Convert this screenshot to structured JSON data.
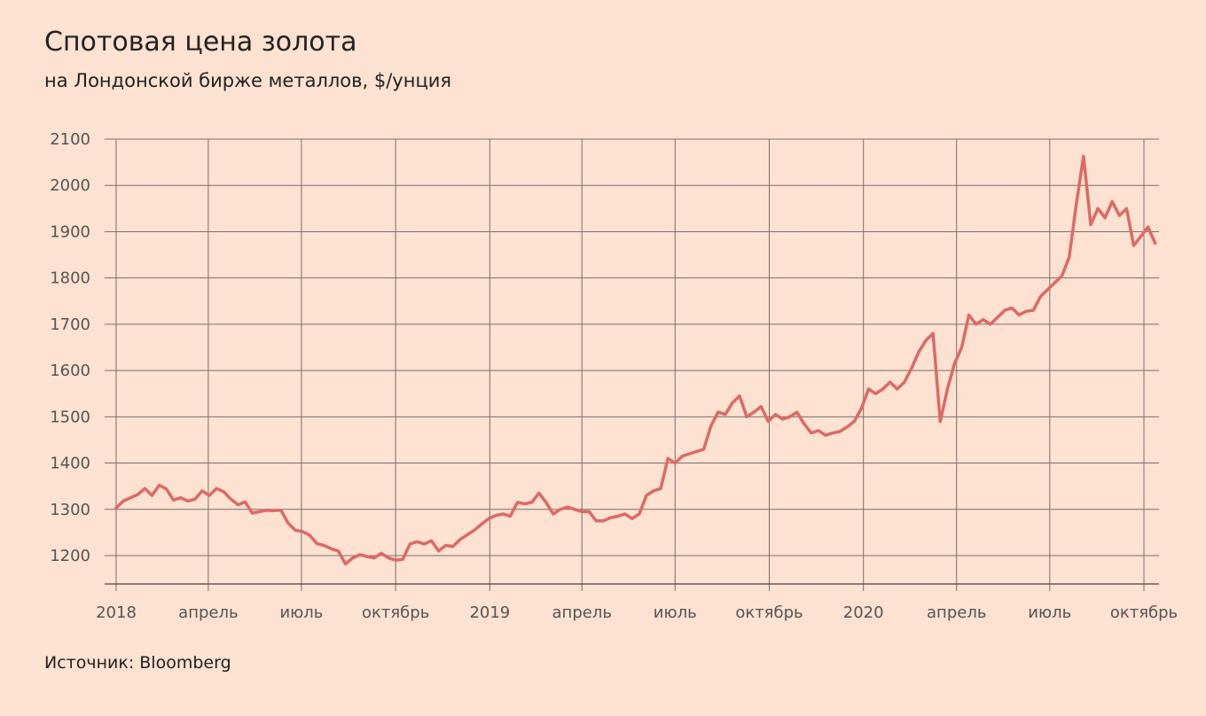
{
  "title": "Спотовая цена золота",
  "subtitle": "на Лондонской бирже металлов, $/унция",
  "source": "Источник: Bloomberg",
  "colors": {
    "background": "#fde1d1",
    "line": "#dc6a66",
    "grid": "#7a6f6c",
    "text": "#222222",
    "tick_text": "#555555"
  },
  "chart_data": {
    "type": "line",
    "title": "Спотовая цена золота",
    "subtitle": "на Лондонской бирже металлов, $/унция",
    "xlabel": "",
    "ylabel": "",
    "ylim": [
      1150,
      2100
    ],
    "xlim": [
      "2018-01-01",
      "2020-10-12"
    ],
    "grid": true,
    "y_ticks": [
      1200,
      1300,
      1400,
      1500,
      1600,
      1700,
      1800,
      1900,
      2000,
      2100
    ],
    "x_ticks": [
      {
        "date": "2018-01-01",
        "label": "2018"
      },
      {
        "date": "2018-04-01",
        "label": "апрель"
      },
      {
        "date": "2018-07-01",
        "label": "июль"
      },
      {
        "date": "2018-10-01",
        "label": "октябрь"
      },
      {
        "date": "2019-01-01",
        "label": "2019"
      },
      {
        "date": "2019-04-01",
        "label": "апрель"
      },
      {
        "date": "2019-07-01",
        "label": "июль"
      },
      {
        "date": "2019-10-01",
        "label": "октябрь"
      },
      {
        "date": "2020-01-01",
        "label": "2020"
      },
      {
        "date": "2020-04-01",
        "label": "апрель"
      },
      {
        "date": "2020-07-01",
        "label": "июль"
      },
      {
        "date": "2020-10-01",
        "label": "октябрь"
      }
    ],
    "series": [
      {
        "points": [
          [
            "2018-01-01",
            1303
          ],
          [
            "2018-01-08",
            1318
          ],
          [
            "2018-01-15",
            1325
          ],
          [
            "2018-01-22",
            1332
          ],
          [
            "2018-01-29",
            1345
          ],
          [
            "2018-02-05",
            1330
          ],
          [
            "2018-02-12",
            1352
          ],
          [
            "2018-02-19",
            1344
          ],
          [
            "2018-02-26",
            1320
          ],
          [
            "2018-03-05",
            1325
          ],
          [
            "2018-03-12",
            1318
          ],
          [
            "2018-03-19",
            1322
          ],
          [
            "2018-03-26",
            1340
          ],
          [
            "2018-04-02",
            1330
          ],
          [
            "2018-04-09",
            1345
          ],
          [
            "2018-04-16",
            1338
          ],
          [
            "2018-04-23",
            1322
          ],
          [
            "2018-04-30",
            1310
          ],
          [
            "2018-05-07",
            1316
          ],
          [
            "2018-05-14",
            1292
          ],
          [
            "2018-05-21",
            1295
          ],
          [
            "2018-05-28",
            1298
          ],
          [
            "2018-06-04",
            1297
          ],
          [
            "2018-06-11",
            1298
          ],
          [
            "2018-06-18",
            1270
          ],
          [
            "2018-06-25",
            1255
          ],
          [
            "2018-07-02",
            1252
          ],
          [
            "2018-07-09",
            1244
          ],
          [
            "2018-07-16",
            1226
          ],
          [
            "2018-07-23",
            1222
          ],
          [
            "2018-07-30",
            1215
          ],
          [
            "2018-08-06",
            1210
          ],
          [
            "2018-08-13",
            1182
          ],
          [
            "2018-08-20",
            1195
          ],
          [
            "2018-08-27",
            1202
          ],
          [
            "2018-09-03",
            1198
          ],
          [
            "2018-09-10",
            1195
          ],
          [
            "2018-09-17",
            1205
          ],
          [
            "2018-09-24",
            1195
          ],
          [
            "2018-10-01",
            1190
          ],
          [
            "2018-10-08",
            1192
          ],
          [
            "2018-10-15",
            1225
          ],
          [
            "2018-10-22",
            1230
          ],
          [
            "2018-10-29",
            1225
          ],
          [
            "2018-11-05",
            1232
          ],
          [
            "2018-11-12",
            1210
          ],
          [
            "2018-11-19",
            1222
          ],
          [
            "2018-11-26",
            1220
          ],
          [
            "2018-12-03",
            1235
          ],
          [
            "2018-12-10",
            1245
          ],
          [
            "2018-12-17",
            1255
          ],
          [
            "2018-12-24",
            1268
          ],
          [
            "2018-12-31",
            1280
          ],
          [
            "2019-01-07",
            1287
          ],
          [
            "2019-01-14",
            1290
          ],
          [
            "2019-01-21",
            1285
          ],
          [
            "2019-01-28",
            1315
          ],
          [
            "2019-02-04",
            1312
          ],
          [
            "2019-02-11",
            1315
          ],
          [
            "2019-02-18",
            1335
          ],
          [
            "2019-02-25",
            1315
          ],
          [
            "2019-03-04",
            1290
          ],
          [
            "2019-03-11",
            1300
          ],
          [
            "2019-03-18",
            1305
          ],
          [
            "2019-03-25",
            1300
          ],
          [
            "2019-04-01",
            1295
          ],
          [
            "2019-04-08",
            1295
          ],
          [
            "2019-04-15",
            1275
          ],
          [
            "2019-04-22",
            1275
          ],
          [
            "2019-04-29",
            1282
          ],
          [
            "2019-05-06",
            1285
          ],
          [
            "2019-05-13",
            1290
          ],
          [
            "2019-05-20",
            1280
          ],
          [
            "2019-05-27",
            1290
          ],
          [
            "2019-06-03",
            1330
          ],
          [
            "2019-06-10",
            1340
          ],
          [
            "2019-06-17",
            1345
          ],
          [
            "2019-06-24",
            1410
          ],
          [
            "2019-07-01",
            1400
          ],
          [
            "2019-07-08",
            1415
          ],
          [
            "2019-07-15",
            1420
          ],
          [
            "2019-07-22",
            1425
          ],
          [
            "2019-07-29",
            1430
          ],
          [
            "2019-08-05",
            1480
          ],
          [
            "2019-08-12",
            1510
          ],
          [
            "2019-08-19",
            1505
          ],
          [
            "2019-08-26",
            1530
          ],
          [
            "2019-09-02",
            1545
          ],
          [
            "2019-09-09",
            1500
          ],
          [
            "2019-09-16",
            1510
          ],
          [
            "2019-09-23",
            1522
          ],
          [
            "2019-09-30",
            1490
          ],
          [
            "2019-10-07",
            1505
          ],
          [
            "2019-10-14",
            1495
          ],
          [
            "2019-10-21",
            1500
          ],
          [
            "2019-10-28",
            1510
          ],
          [
            "2019-11-04",
            1485
          ],
          [
            "2019-11-11",
            1465
          ],
          [
            "2019-11-18",
            1470
          ],
          [
            "2019-11-25",
            1460
          ],
          [
            "2019-12-02",
            1465
          ],
          [
            "2019-12-09",
            1468
          ],
          [
            "2019-12-16",
            1478
          ],
          [
            "2019-12-23",
            1490
          ],
          [
            "2019-12-30",
            1518
          ],
          [
            "2020-01-06",
            1560
          ],
          [
            "2020-01-13",
            1550
          ],
          [
            "2020-01-20",
            1560
          ],
          [
            "2020-01-27",
            1575
          ],
          [
            "2020-02-03",
            1560
          ],
          [
            "2020-02-10",
            1575
          ],
          [
            "2020-02-17",
            1605
          ],
          [
            "2020-02-24",
            1640
          ],
          [
            "2020-03-02",
            1665
          ],
          [
            "2020-03-09",
            1680
          ],
          [
            "2020-03-16",
            1490
          ],
          [
            "2020-03-23",
            1560
          ],
          [
            "2020-03-30",
            1615
          ],
          [
            "2020-04-06",
            1650
          ],
          [
            "2020-04-13",
            1720
          ],
          [
            "2020-04-20",
            1700
          ],
          [
            "2020-04-27",
            1710
          ],
          [
            "2020-05-04",
            1700
          ],
          [
            "2020-05-11",
            1715
          ],
          [
            "2020-05-18",
            1730
          ],
          [
            "2020-05-25",
            1735
          ],
          [
            "2020-06-01",
            1720
          ],
          [
            "2020-06-08",
            1728
          ],
          [
            "2020-06-15",
            1730
          ],
          [
            "2020-06-22",
            1760
          ],
          [
            "2020-06-29",
            1775
          ],
          [
            "2020-07-06",
            1790
          ],
          [
            "2020-07-13",
            1805
          ],
          [
            "2020-07-20",
            1845
          ],
          [
            "2020-07-27",
            1960
          ],
          [
            "2020-08-03",
            2063
          ],
          [
            "2020-08-10",
            1915
          ],
          [
            "2020-08-17",
            1950
          ],
          [
            "2020-08-24",
            1930
          ],
          [
            "2020-08-31",
            1965
          ],
          [
            "2020-09-07",
            1935
          ],
          [
            "2020-09-14",
            1950
          ],
          [
            "2020-09-21",
            1870
          ],
          [
            "2020-09-28",
            1890
          ],
          [
            "2020-10-05",
            1910
          ],
          [
            "2020-10-12",
            1875
          ]
        ]
      }
    ]
  }
}
